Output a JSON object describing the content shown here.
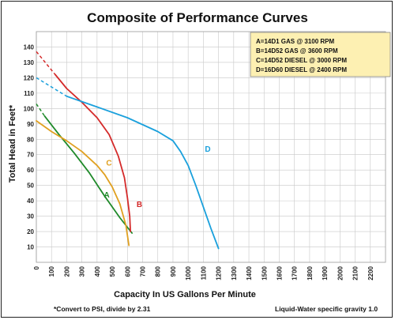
{
  "chart_data": {
    "type": "line",
    "title": "Composite of Performance Curves",
    "xlabel": "Capacity In US Gallons Per Minute",
    "ylabel": "Total Head in Feet*",
    "xlim": [
      0,
      2300
    ],
    "ylim": [
      0,
      150
    ],
    "x_ticks": [
      0,
      100,
      200,
      300,
      400,
      500,
      600,
      700,
      800,
      900,
      1000,
      1100,
      1200,
      1300,
      1400,
      1500,
      1600,
      1700,
      1800,
      1900,
      2000,
      2100,
      2200
    ],
    "y_ticks": [
      10,
      20,
      30,
      40,
      50,
      60,
      70,
      80,
      90,
      100,
      110,
      120,
      130,
      140
    ],
    "grid": true,
    "legend": {
      "placement": "top-right",
      "entries": [
        "A=14D1 GAS @ 3100 RPM",
        "B=14D52 GAS @ 3600 RPM",
        "C=14D52 DIESEL @ 3000 RPM",
        "D=16D60 DIESEL @ 2400 RPM"
      ]
    },
    "series": [
      {
        "name": "A",
        "color": "#1f8a2a",
        "dashed_x": [
          0,
          55
        ],
        "dashed_y": [
          103,
          95
        ],
        "x": [
          55,
          150,
          250,
          350,
          450,
          550,
          630
        ],
        "y": [
          95,
          83,
          71,
          58,
          43,
          29,
          19
        ],
        "label_at": [
          445,
          42
        ]
      },
      {
        "name": "B",
        "color": "#d42a2a",
        "dashed_x": [
          0,
          125
        ],
        "dashed_y": [
          137,
          122
        ],
        "x": [
          125,
          200,
          300,
          400,
          480,
          540,
          580,
          600,
          615,
          620
        ],
        "y": [
          122,
          113,
          104,
          94,
          83,
          69,
          55,
          42,
          30,
          20
        ],
        "label_at": [
          660,
          36
        ]
      },
      {
        "name": "C",
        "color": "#e0a020",
        "x": [
          0,
          100,
          200,
          300,
          400,
          450,
          500,
          550,
          590,
          610
        ],
        "y": [
          92,
          85,
          79,
          72,
          63,
          57,
          49,
          38,
          24,
          11
        ],
        "label_at": [
          460,
          63
        ]
      },
      {
        "name": "D",
        "color": "#1aa0dc",
        "dashed_x": [
          0,
          200
        ],
        "dashed_y": [
          120,
          108
        ],
        "x": [
          200,
          400,
          600,
          800,
          900,
          950,
          1000,
          1050,
          1100,
          1150,
          1200
        ],
        "y": [
          108,
          101,
          94,
          85,
          79,
          72,
          63,
          50,
          36,
          22,
          9
        ],
        "label_at": [
          1110,
          72
        ]
      }
    ]
  },
  "footnotes": {
    "left": "*Convert to PSI, divide by 2.31",
    "right": "Liquid-Water specific gravity 1.0"
  }
}
